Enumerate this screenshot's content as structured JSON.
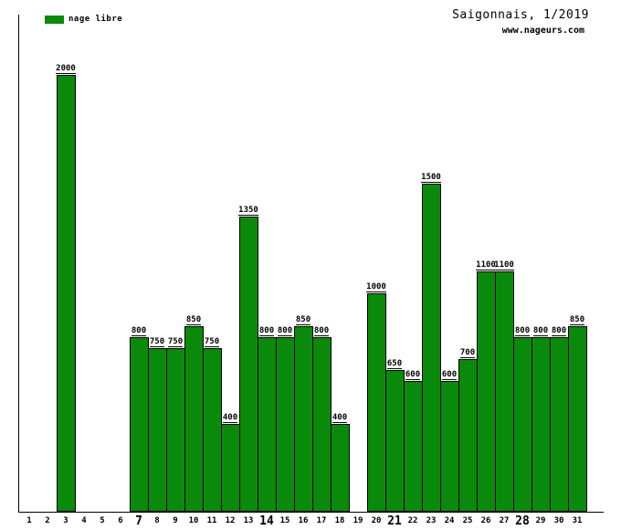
{
  "legend": {
    "label": "nage libre",
    "color": "#0a8a0a"
  },
  "header": {
    "title": "Saigonnais, 1/2019",
    "website": "www.nageurs.com"
  },
  "chart_data": {
    "type": "bar",
    "title": "Saigonnais, 1/2019",
    "subtitle": "www.nageurs.com",
    "series_name": "nage libre",
    "categories": [
      "1",
      "2",
      "3",
      "4",
      "5",
      "6",
      "7",
      "8",
      "9",
      "10",
      "11",
      "12",
      "13",
      "14",
      "15",
      "16",
      "17",
      "18",
      "19",
      "20",
      "21",
      "22",
      "23",
      "24",
      "25",
      "26",
      "27",
      "28",
      "29",
      "30",
      "31"
    ],
    "values": [
      null,
      null,
      2000,
      null,
      null,
      null,
      800,
      750,
      750,
      850,
      750,
      400,
      1350,
      800,
      800,
      850,
      800,
      400,
      null,
      1000,
      650,
      600,
      1500,
      600,
      700,
      1100,
      1100,
      800,
      800,
      800,
      850
    ],
    "bold_x_labels": [
      "7",
      "14",
      "21",
      "28"
    ],
    "bar_color": "#0a8a0a",
    "bar_border_color": "#000000",
    "value_labels_shown": true,
    "xlabel": "",
    "ylabel": "",
    "ylim": [
      0,
      2276
    ],
    "grid": false,
    "legend_position": "top-left"
  }
}
